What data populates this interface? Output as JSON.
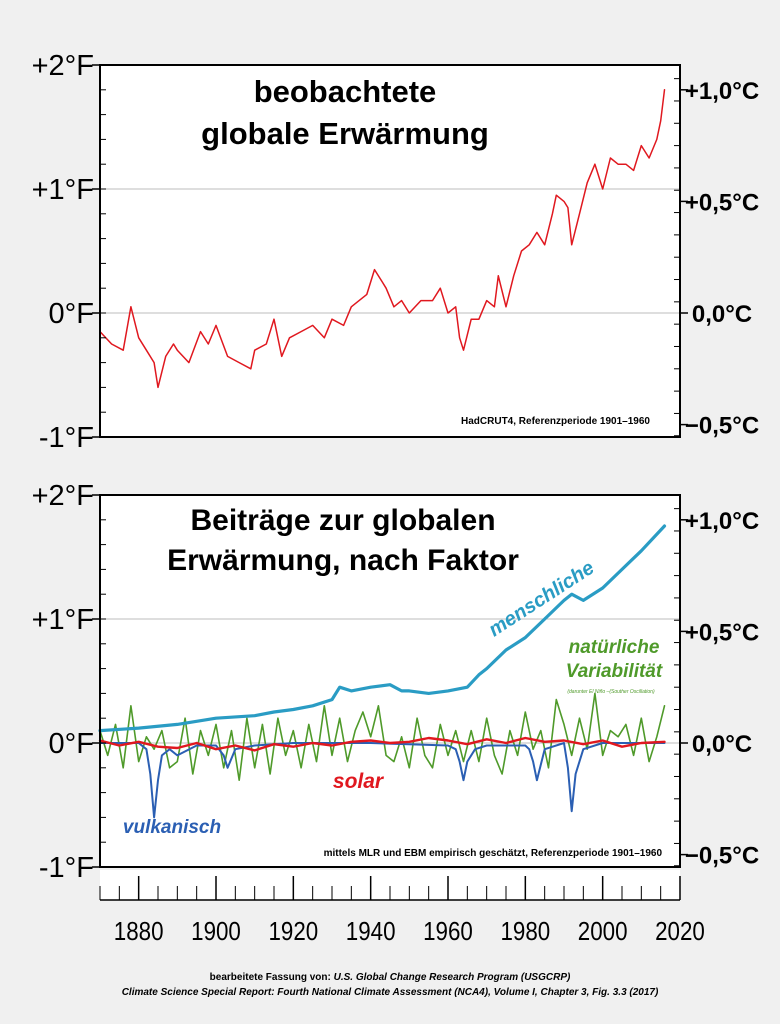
{
  "colors": {
    "observed": "#e0181f",
    "human": "#2a9cc4",
    "natural": "#4f9a2a",
    "solar": "#e0181f",
    "volcanic": "#2b5fb3",
    "background": "#f0f0f0",
    "panel": "#ffffff"
  },
  "x_axis": {
    "min": 1870,
    "max": 2020,
    "ticks": [
      "1880",
      "1900",
      "1920",
      "1940",
      "1960",
      "1980",
      "2000",
      "2020"
    ]
  },
  "chart_data": [
    {
      "type": "line",
      "title": "beobachtete globale Erwärmung",
      "title_lines": [
        "beobachtete",
        "globale Erwärmung"
      ],
      "y_unit_left": "°F",
      "y_unit_right": "°C",
      "ylim": [
        -1,
        2
      ],
      "left_ticks": [
        {
          "value": 2,
          "label": "+2°F"
        },
        {
          "value": 1,
          "label": "+1°F"
        },
        {
          "value": 0,
          "label": "0°F"
        },
        {
          "value": -1,
          "label": "-1°F"
        }
      ],
      "right_ticks": [
        {
          "value": 1.0,
          "label": "+1,0°C"
        },
        {
          "value": 0.5,
          "label": "+0,5°C"
        },
        {
          "value": 0.0,
          "label": "0,0°C"
        },
        {
          "value": -0.5,
          "label": "−0,5°C"
        }
      ],
      "source_note": "HadCRUT4, Referenzperiode 1901–1960",
      "series": [
        {
          "key": "observed",
          "x": [
            1870,
            1873,
            1876,
            1878,
            1880,
            1882,
            1884,
            1885,
            1887,
            1889,
            1890,
            1893,
            1896,
            1898,
            1900,
            1903,
            1906,
            1909,
            1910,
            1913,
            1915,
            1917,
            1919,
            1922,
            1925,
            1928,
            1930,
            1933,
            1935,
            1937,
            1939,
            1941,
            1943,
            1944,
            1946,
            1948,
            1950,
            1953,
            1956,
            1958,
            1960,
            1962,
            1963,
            1964,
            1966,
            1968,
            1970,
            1972,
            1973,
            1975,
            1977,
            1979,
            1981,
            1983,
            1985,
            1987,
            1988,
            1990,
            1991,
            1992,
            1994,
            1996,
            1998,
            2000,
            2002,
            2004,
            2006,
            2008,
            2010,
            2012,
            2014,
            2015,
            2016
          ],
          "values": [
            -0.15,
            -0.25,
            -0.3,
            0.05,
            -0.2,
            -0.3,
            -0.4,
            -0.6,
            -0.35,
            -0.25,
            -0.3,
            -0.4,
            -0.15,
            -0.25,
            -0.1,
            -0.35,
            -0.4,
            -0.45,
            -0.3,
            -0.25,
            -0.05,
            -0.35,
            -0.2,
            -0.15,
            -0.1,
            -0.2,
            -0.05,
            -0.1,
            0.05,
            0.1,
            0.15,
            0.35,
            0.25,
            0.2,
            0.05,
            0.1,
            0.0,
            0.1,
            0.1,
            0.2,
            0.0,
            0.05,
            -0.2,
            -0.3,
            -0.05,
            -0.05,
            0.1,
            0.05,
            0.3,
            0.05,
            0.3,
            0.5,
            0.55,
            0.65,
            0.55,
            0.8,
            0.95,
            0.9,
            0.85,
            0.55,
            0.8,
            1.05,
            1.2,
            1.0,
            1.25,
            1.2,
            1.2,
            1.15,
            1.35,
            1.25,
            1.4,
            1.55,
            1.8
          ]
        }
      ]
    },
    {
      "type": "line",
      "title": "Beiträge zur globalen Erwärmung, nach Faktor",
      "title_lines": [
        "Beiträge zur globalen",
        "Erwärmung, nach Faktor"
      ],
      "y_unit_left": "°F",
      "y_unit_right": "°C",
      "ylim": [
        -1,
        2
      ],
      "left_ticks": [
        {
          "value": 2,
          "label": "+2°F"
        },
        {
          "value": 1,
          "label": "+1°F"
        },
        {
          "value": 0,
          "label": "0°F"
        },
        {
          "value": -1,
          "label": "-1°F"
        }
      ],
      "right_ticks": [
        {
          "value": 1.0,
          "label": "+1,0°C"
        },
        {
          "value": 0.5,
          "label": "+0,5°C"
        },
        {
          "value": 0.0,
          "label": "0,0°C"
        },
        {
          "value": -0.5,
          "label": "−0,5°C"
        }
      ],
      "source_note": "mittels MLR und EBM empirisch geschätzt, Referenzperiode 1901–1960",
      "annotations": {
        "human": "menschliche",
        "natural_line1": "natürliche",
        "natural_line2": "Variabilität",
        "natural_small": "(darunter El Niño –(Souther Oscillation)",
        "solar": "solar",
        "volcanic": "vulkanisch"
      },
      "series": [
        {
          "key": "human",
          "x": [
            1870,
            1880,
            1890,
            1900,
            1910,
            1915,
            1920,
            1925,
            1930,
            1932,
            1935,
            1940,
            1945,
            1948,
            1950,
            1955,
            1960,
            1965,
            1968,
            1970,
            1975,
            1980,
            1985,
            1990,
            1992,
            1995,
            2000,
            2005,
            2010,
            2016
          ],
          "values": [
            0.1,
            0.12,
            0.15,
            0.2,
            0.22,
            0.25,
            0.27,
            0.3,
            0.35,
            0.45,
            0.42,
            0.45,
            0.47,
            0.42,
            0.42,
            0.4,
            0.42,
            0.45,
            0.55,
            0.6,
            0.75,
            0.85,
            1.0,
            1.15,
            1.2,
            1.15,
            1.25,
            1.4,
            1.55,
            1.75
          ]
        },
        {
          "key": "natural",
          "x": [
            1870,
            1872,
            1874,
            1876,
            1878,
            1880,
            1882,
            1884,
            1886,
            1888,
            1890,
            1892,
            1894,
            1896,
            1898,
            1900,
            1902,
            1904,
            1906,
            1908,
            1910,
            1912,
            1914,
            1916,
            1918,
            1920,
            1922,
            1924,
            1926,
            1928,
            1930,
            1932,
            1934,
            1936,
            1938,
            1940,
            1942,
            1944,
            1946,
            1948,
            1950,
            1952,
            1954,
            1956,
            1958,
            1960,
            1962,
            1964,
            1966,
            1968,
            1970,
            1972,
            1974,
            1976,
            1978,
            1980,
            1982,
            1984,
            1986,
            1988,
            1990,
            1992,
            1994,
            1996,
            1998,
            2000,
            2002,
            2004,
            2006,
            2008,
            2010,
            2012,
            2014,
            2016
          ],
          "values": [
            0.1,
            -0.1,
            0.15,
            -0.2,
            0.3,
            -0.15,
            0.05,
            -0.05,
            0.1,
            -0.2,
            -0.15,
            0.2,
            -0.25,
            0.1,
            -0.1,
            0.15,
            -0.2,
            0.1,
            -0.3,
            0.2,
            -0.2,
            0.15,
            -0.25,
            0.2,
            -0.1,
            0.1,
            -0.2,
            0.15,
            -0.15,
            0.3,
            -0.1,
            0.2,
            -0.15,
            0.1,
            0.25,
            0.05,
            0.3,
            -0.1,
            -0.15,
            0.05,
            -0.2,
            0.2,
            -0.1,
            -0.2,
            0.15,
            -0.1,
            0.1,
            -0.15,
            0.1,
            -0.15,
            0.2,
            -0.1,
            -0.25,
            0.1,
            -0.1,
            0.25,
            -0.05,
            0.1,
            -0.2,
            0.35,
            0.15,
            -0.1,
            0.2,
            -0.05,
            0.4,
            -0.1,
            0.1,
            0.05,
            0.15,
            -0.1,
            0.2,
            -0.15,
            0.05,
            0.3
          ]
        },
        {
          "key": "solar",
          "x": [
            1870,
            1875,
            1880,
            1885,
            1890,
            1895,
            1900,
            1905,
            1910,
            1915,
            1920,
            1925,
            1930,
            1935,
            1940,
            1945,
            1950,
            1955,
            1960,
            1965,
            1970,
            1975,
            1980,
            1985,
            1990,
            1995,
            2000,
            2005,
            2010,
            2016
          ],
          "values": [
            0.02,
            -0.02,
            0.01,
            -0.03,
            -0.04,
            0.0,
            -0.05,
            -0.02,
            -0.06,
            -0.01,
            -0.03,
            0.0,
            -0.02,
            0.01,
            0.02,
            0.0,
            0.01,
            0.04,
            0.02,
            -0.01,
            0.03,
            0.0,
            0.04,
            0.01,
            0.02,
            -0.01,
            0.02,
            -0.03,
            0.0,
            0.01
          ]
        },
        {
          "key": "volcanic",
          "x": [
            1870,
            1880,
            1882,
            1883,
            1884,
            1885,
            1886,
            1888,
            1890,
            1895,
            1900,
            1902,
            1903,
            1905,
            1910,
            1920,
            1940,
            1960,
            1962,
            1963,
            1964,
            1965,
            1967,
            1970,
            1980,
            1981,
            1982,
            1983,
            1985,
            1990,
            1991,
            1992,
            1993,
            1995,
            2000,
            2010,
            2016
          ],
          "values": [
            0.0,
            0.0,
            -0.05,
            -0.25,
            -0.6,
            -0.3,
            -0.1,
            -0.05,
            -0.1,
            -0.02,
            -0.02,
            -0.1,
            -0.2,
            -0.05,
            -0.02,
            0.0,
            0.0,
            -0.02,
            -0.05,
            -0.15,
            -0.3,
            -0.15,
            -0.05,
            -0.02,
            -0.02,
            -0.05,
            -0.15,
            -0.3,
            -0.05,
            0.0,
            -0.2,
            -0.55,
            -0.25,
            -0.05,
            0.0,
            0.0,
            0.0
          ]
        }
      ]
    }
  ],
  "credits": {
    "line1_prefix": "bearbeitete Fassung von: ",
    "line1_source": "U.S. Global Change Research Program (USGCRP)",
    "line2": "Climate Science Special Report: Fourth National Climate Assessment (NCA4), Volume I, Chapter 3, Fig. 3.3 (2017)"
  }
}
